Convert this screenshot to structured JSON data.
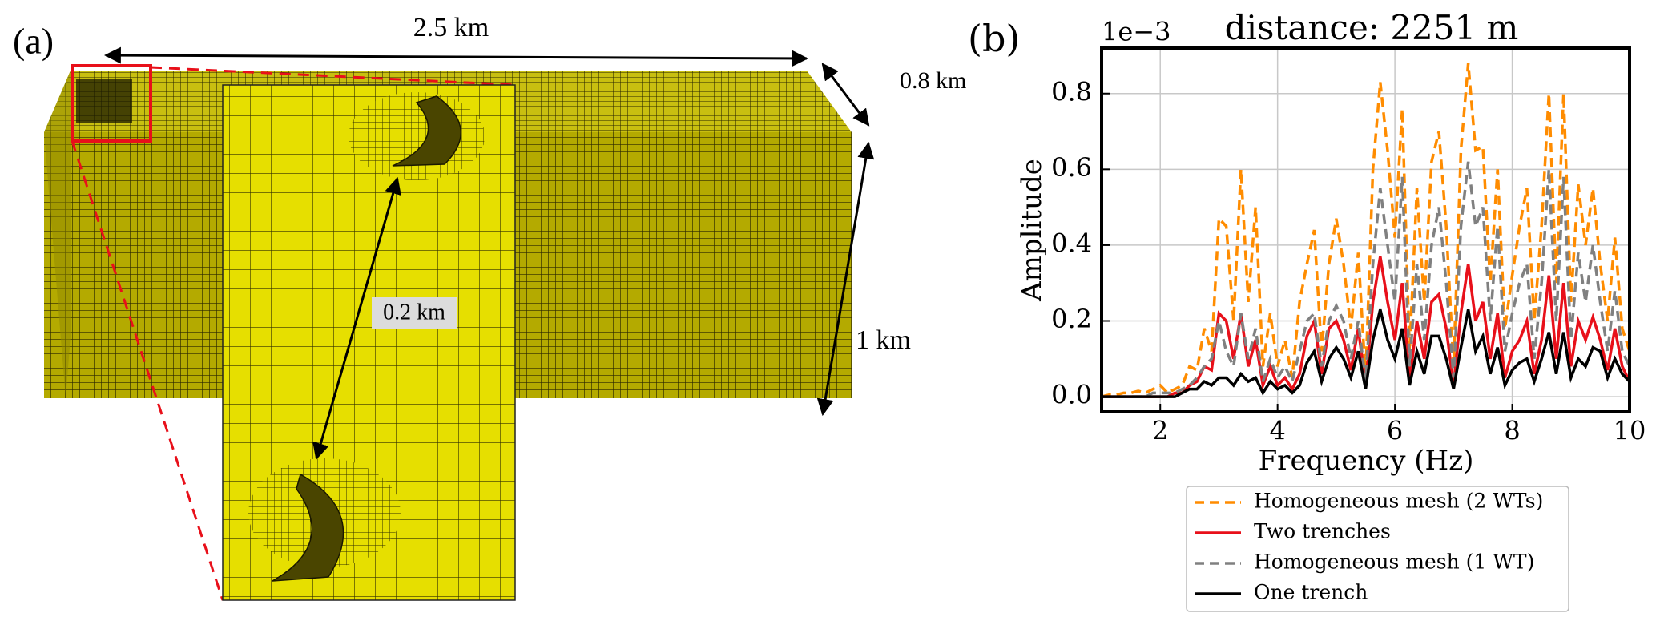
{
  "panel_a": {
    "label": "(a)",
    "annotations": [
      "2.5 km",
      "0.8 km",
      "1 km",
      "0.2 km"
    ]
  },
  "chart_data": {
    "type": "line",
    "label": "(b)",
    "title": "distance: 2251 m",
    "y_offset_label": "1e−3",
    "xlabel": "Frequency (Hz)",
    "ylabel": "Amplitude",
    "x": [
      1,
      1.125,
      1.25,
      1.375,
      1.5,
      1.625,
      1.75,
      1.875,
      2,
      2.125,
      2.25,
      2.375,
      2.5,
      2.625,
      2.75,
      2.875,
      3,
      3.125,
      3.25,
      3.375,
      3.5,
      3.625,
      3.75,
      3.875,
      4,
      4.125,
      4.25,
      4.375,
      4.5,
      4.625,
      4.75,
      4.875,
      5,
      5.125,
      5.25,
      5.375,
      5.5,
      5.625,
      5.75,
      5.875,
      6,
      6.125,
      6.25,
      6.375,
      6.5,
      6.625,
      6.75,
      6.875,
      7,
      7.125,
      7.25,
      7.375,
      7.5,
      7.625,
      7.75,
      7.875,
      8,
      8.125,
      8.25,
      8.375,
      8.5,
      8.625,
      8.75,
      8.875,
      9,
      9.125,
      9.25,
      9.375,
      9.5,
      9.625,
      9.75,
      9.875,
      10
    ],
    "xlim": [
      1,
      10
    ],
    "ylim": [
      -0.04,
      0.92
    ],
    "xticks": [
      2,
      4,
      6,
      8,
      10
    ],
    "yticks": [
      {
        "value": 0,
        "label": "0.0"
      },
      0.2,
      0.4,
      0.6,
      0.8
    ],
    "grid": true,
    "legend": "below",
    "series": [
      {
        "name": "Homogeneous mesh (2 WTs)",
        "color": "#ff8c00",
        "dash": "dashed",
        "values": [
          0,
          0.005,
          0.005,
          0.01,
          0.01,
          0.015,
          0.01,
          0.02,
          0.03,
          0.01,
          0.02,
          0.03,
          0.08,
          0.07,
          0.18,
          0.12,
          0.47,
          0.45,
          0.2,
          0.6,
          0.25,
          0.5,
          0.08,
          0.22,
          0.08,
          0.15,
          0.05,
          0.25,
          0.35,
          0.44,
          0.12,
          0.35,
          0.47,
          0.35,
          0.18,
          0.38,
          0.05,
          0.6,
          0.83,
          0.65,
          0.42,
          0.76,
          0.12,
          0.55,
          0.25,
          0.62,
          0.7,
          0.45,
          0.08,
          0.65,
          0.88,
          0.65,
          0.66,
          0.3,
          0.6,
          0.18,
          0.32,
          0.45,
          0.55,
          0.2,
          0.45,
          0.8,
          0.3,
          0.8,
          0.25,
          0.56,
          0.4,
          0.55,
          0.35,
          0.2,
          0.42,
          0.18,
          0.12
        ]
      },
      {
        "name": "Two trenches",
        "color": "#e8101a",
        "dash": "solid",
        "values": [
          0,
          0,
          0,
          0,
          0,
          0,
          0,
          0,
          0,
          0,
          0.01,
          0.01,
          0.03,
          0.04,
          0.08,
          0.07,
          0.22,
          0.2,
          0.1,
          0.22,
          0.08,
          0.15,
          0.03,
          0.08,
          0.03,
          0.05,
          0.02,
          0.06,
          0.16,
          0.2,
          0.06,
          0.18,
          0.2,
          0.15,
          0.07,
          0.18,
          0.03,
          0.25,
          0.37,
          0.25,
          0.15,
          0.3,
          0.04,
          0.2,
          0.1,
          0.25,
          0.27,
          0.18,
          0.03,
          0.22,
          0.35,
          0.2,
          0.25,
          0.1,
          0.22,
          0.05,
          0.12,
          0.15,
          0.2,
          0.06,
          0.15,
          0.32,
          0.1,
          0.3,
          0.08,
          0.2,
          0.15,
          0.21,
          0.15,
          0.07,
          0.18,
          0.08,
          0.04
        ]
      },
      {
        "name": "Homogeneous mesh (1 WT)",
        "color": "#808080",
        "dash": "dashed",
        "values": [
          0,
          0,
          0,
          0,
          0,
          0,
          0,
          0.01,
          0.01,
          0.01,
          0.01,
          0.02,
          0.03,
          0.05,
          0.08,
          0.1,
          0.2,
          0.12,
          0.08,
          0.22,
          0.1,
          0.18,
          0.04,
          0.1,
          0.05,
          0.08,
          0.04,
          0.12,
          0.2,
          0.22,
          0.08,
          0.2,
          0.24,
          0.2,
          0.1,
          0.2,
          0.04,
          0.35,
          0.55,
          0.4,
          0.25,
          0.58,
          0.08,
          0.35,
          0.15,
          0.4,
          0.5,
          0.3,
          0.05,
          0.45,
          0.62,
          0.45,
          0.5,
          0.2,
          0.45,
          0.12,
          0.22,
          0.3,
          0.35,
          0.1,
          0.3,
          0.6,
          0.2,
          0.58,
          0.15,
          0.38,
          0.25,
          0.4,
          0.25,
          0.12,
          0.28,
          0.12,
          0.08
        ]
      },
      {
        "name": "One trench",
        "color": "#000000",
        "dash": "solid",
        "values": [
          0,
          0,
          0,
          0,
          0,
          0,
          0,
          0,
          0,
          0,
          0,
          0.01,
          0.02,
          0.02,
          0.04,
          0.03,
          0.05,
          0.05,
          0.03,
          0.06,
          0.04,
          0.05,
          0.01,
          0.04,
          0.02,
          0.03,
          0.01,
          0.03,
          0.09,
          0.12,
          0.04,
          0.1,
          0.13,
          0.1,
          0.05,
          0.12,
          0.02,
          0.15,
          0.23,
          0.15,
          0.1,
          0.18,
          0.03,
          0.12,
          0.06,
          0.16,
          0.16,
          0.1,
          0.02,
          0.13,
          0.23,
          0.12,
          0.16,
          0.06,
          0.13,
          0.03,
          0.07,
          0.09,
          0.1,
          0.04,
          0.1,
          0.17,
          0.06,
          0.17,
          0.05,
          0.1,
          0.08,
          0.13,
          0.12,
          0.05,
          0.1,
          0.06,
          0.04
        ]
      }
    ]
  }
}
